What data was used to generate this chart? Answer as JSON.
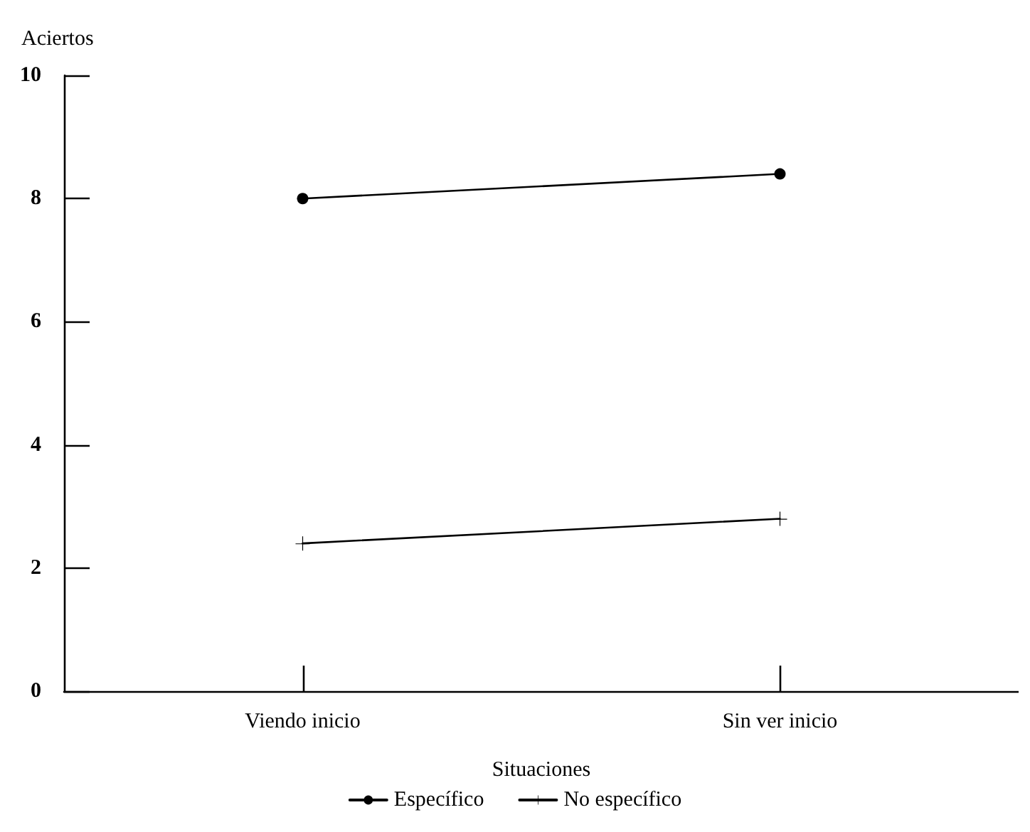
{
  "chart_data": {
    "type": "line",
    "xlabel": "Situaciones",
    "ylabel": "Aciertos",
    "categories": [
      "Viendo inicio",
      "Sin ver inicio"
    ],
    "series": [
      {
        "name": "Específico",
        "color": "#000000",
        "marker": "circle",
        "values": [
          8.0,
          8.4
        ]
      },
      {
        "name": "No específico",
        "color": "#000000",
        "marker": "cross",
        "values": [
          2.4,
          2.8
        ]
      }
    ],
    "ylim": [
      0,
      10
    ],
    "yticks": [
      0,
      2,
      4,
      6,
      8,
      10
    ],
    "grid": false,
    "legend": "bottom",
    "line_style": "solid"
  }
}
